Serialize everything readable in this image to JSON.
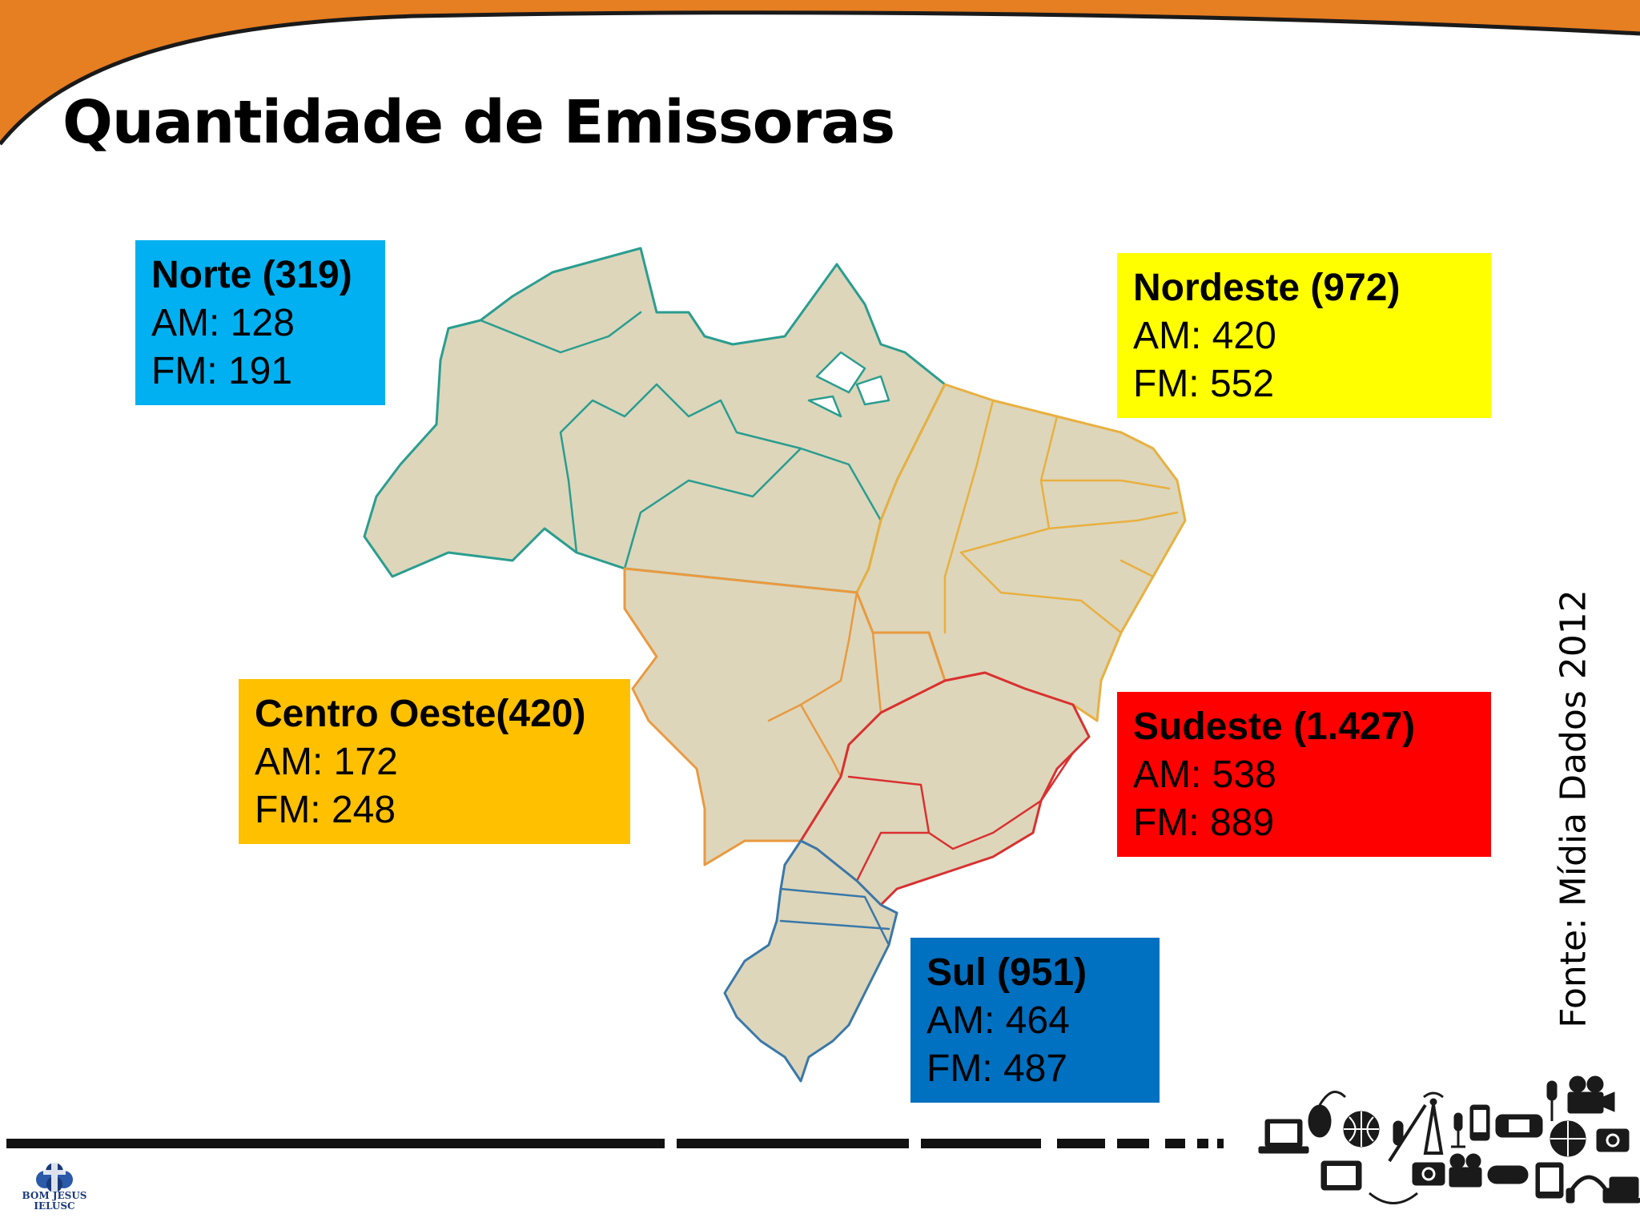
{
  "slide": {
    "title": "Quantidade de Emissoras",
    "source": "Fonte: Mídia Dados 2012"
  },
  "regions": {
    "norte": {
      "name": "Norte (319)",
      "am": "AM: 128",
      "fm": "FM: 191",
      "color": "#00b0f0"
    },
    "nordeste": {
      "name": "Nordeste (972)",
      "am": "AM: 420",
      "fm": "FM: 552",
      "color": "#ffff00"
    },
    "centro_oeste": {
      "name": "Centro Oeste(420)",
      "am": "AM: 172",
      "fm": "FM: 248",
      "color": "#ffc000"
    },
    "sudeste": {
      "name": "Sudeste (1.427)",
      "am": "AM: 538",
      "fm": "FM: 889",
      "color": "#ff0000"
    },
    "sul": {
      "name": "Sul (951)",
      "am": "AM: 464",
      "fm": "FM: 487",
      "color": "#0070c0"
    }
  },
  "map": {
    "land_color": "#ddd6bb",
    "border_colors": {
      "norte": "#2a9d8f",
      "nordeste": "#e8b040",
      "centro_oeste": "#e89a40",
      "sudeste": "#d93030",
      "sul": "#3a78a8"
    }
  },
  "logo": {
    "line1": "BOM JESUS",
    "line2": "IELUSC"
  },
  "theme": {
    "accent": "#e67e22"
  }
}
